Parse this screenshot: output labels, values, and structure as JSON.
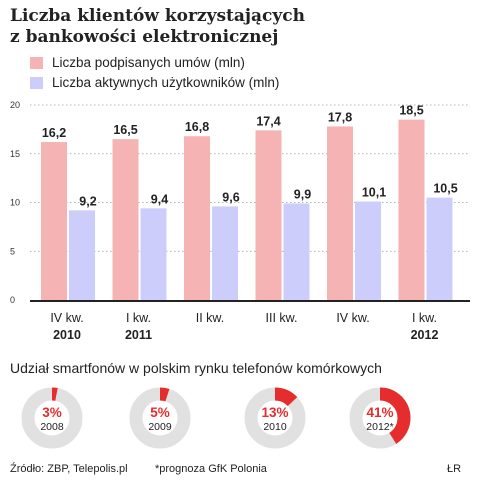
{
  "header": {
    "title_line1": "Liczba klientów korzystających",
    "title_line2": "z bankowości elektronicznej"
  },
  "colors": {
    "signed": "#f6b3b3",
    "active": "#cdcdfb",
    "donut_bg": "#e1e1e1",
    "donut_fg": "#e52d2d"
  },
  "chart_data": [
    {
      "type": "bar",
      "title": "Liczba klientów korzystających z bankowości elektronicznej",
      "categories": [
        {
          "line1": "IV kw.",
          "line2": "2010"
        },
        {
          "line1": "I kw.",
          "line2": "2011"
        },
        {
          "line1": "II kw.",
          "line2": ""
        },
        {
          "line1": "III kw.",
          "line2": ""
        },
        {
          "line1": "IV kw.",
          "line2": ""
        },
        {
          "line1": "I kw.",
          "line2": "2012"
        }
      ],
      "series": [
        {
          "name": "Liczba podpisanych umów (mln)",
          "values": [
            16.2,
            16.5,
            16.8,
            17.4,
            17.8,
            18.5
          ],
          "labels": [
            "16,2",
            "16,5",
            "16,8",
            "17,4",
            "17,8",
            "18,5"
          ]
        },
        {
          "name": "Liczba aktywnych użytkowników (mln)",
          "values": [
            9.2,
            9.4,
            9.6,
            9.9,
            10.1,
            10.5
          ],
          "labels": [
            "9,2",
            "9,4",
            "9,6",
            "9,9",
            "10,1",
            "10,5"
          ]
        }
      ],
      "ylim": [
        0,
        20
      ],
      "yticks": [
        0,
        5,
        10,
        15,
        20
      ],
      "grid": true,
      "legend": "top-left"
    },
    {
      "type": "pie",
      "title": "Udział smartfonów w polskim rynku telefonów komórkowych",
      "slices": [
        {
          "year": "2008",
          "value": 3,
          "label": "3%"
        },
        {
          "year": "2009",
          "value": 5,
          "label": "5%"
        },
        {
          "year": "2010",
          "value": 13,
          "label": "13%"
        },
        {
          "year": "2012*",
          "value": 41,
          "label": "41%"
        }
      ]
    }
  ],
  "footer": {
    "source": "Źródło: ZBP, Telepolis.pl",
    "note": "*prognoza GfK Polonia",
    "author": "ŁR"
  }
}
